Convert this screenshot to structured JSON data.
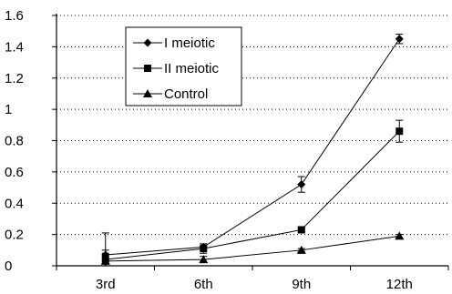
{
  "chart_data": {
    "type": "line",
    "title": "",
    "xlabel": "",
    "ylabel": "",
    "categories": [
      "3rd",
      "6th",
      "9th",
      "12th"
    ],
    "ylim": [
      0,
      1.6
    ],
    "yticks": [
      0,
      0.2,
      0.4,
      0.6,
      0.8,
      1,
      1.2,
      1.4,
      1.6
    ],
    "ytick_labels": [
      "0",
      "0.2",
      "0.4",
      "0.6",
      "0.8",
      "1",
      "1.2",
      "1.4",
      "1.6"
    ],
    "grid": "horizontal dotted",
    "legend_position": "top-left",
    "series": [
      {
        "name": "I meiotic",
        "marker": "diamond",
        "values": [
          0.07,
          0.12,
          0.52,
          1.45
        ],
        "errors": [
          0.03,
          0.02,
          0.05,
          0.03
        ]
      },
      {
        "name": "II meiotic",
        "marker": "square",
        "values": [
          0.04,
          0.11,
          0.23,
          0.86
        ],
        "errors": [
          0.04,
          0.03,
          0.02,
          0.07
        ]
      },
      {
        "name": "Control",
        "marker": "triangle",
        "values": [
          0.03,
          0.04,
          0.1,
          0.19
        ],
        "errors": [
          0.18,
          0.02,
          0.01,
          0.01
        ]
      }
    ],
    "colors": {
      "line": "#000000",
      "grid": "#000000",
      "background": "#ffffff"
    }
  }
}
